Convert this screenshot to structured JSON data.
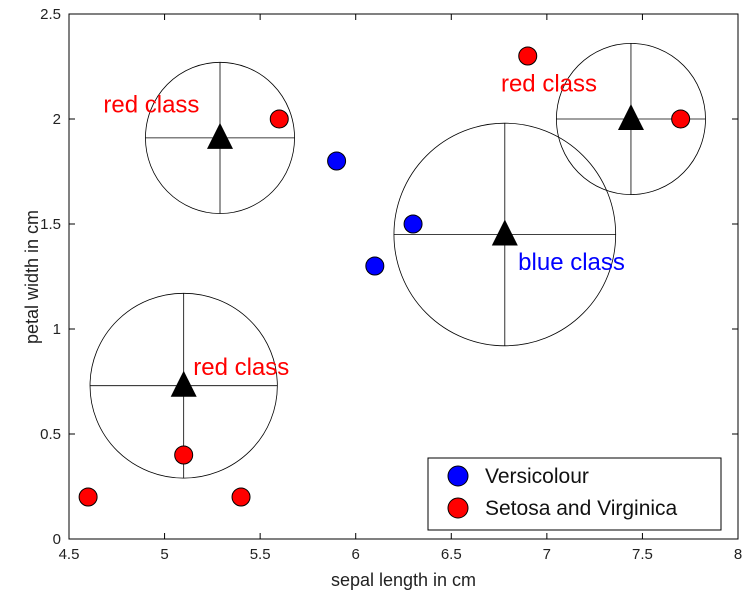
{
  "chart_data": {
    "type": "scatter",
    "title": "",
    "xlabel": "sepal length in cm",
    "ylabel": "petal width in cm",
    "xlim": [
      4.5,
      8
    ],
    "ylim": [
      0,
      2.5
    ],
    "xticks": [
      4.5,
      5,
      5.5,
      6,
      6.5,
      7,
      7.5,
      8
    ],
    "xtick_labels": [
      "4.5",
      "5",
      "5.5",
      "6",
      "6.5",
      "7",
      "7.5",
      "8"
    ],
    "yticks": [
      0,
      0.5,
      1,
      1.5,
      2,
      2.5
    ],
    "ytick_labels": [
      "0",
      "0.5",
      "1",
      "1.5",
      "2",
      "2.5"
    ],
    "grid": false,
    "legend_position": "bottom-right",
    "series": [
      {
        "name": "Versicolour",
        "color": "#0000ff",
        "points": [
          {
            "x": 5.9,
            "y": 1.8
          },
          {
            "x": 6.3,
            "y": 1.5
          },
          {
            "x": 6.1,
            "y": 1.3
          }
        ]
      },
      {
        "name": "Setosa and Virginica",
        "color": "#ff0000",
        "points": [
          {
            "x": 6.9,
            "y": 2.3
          },
          {
            "x": 5.6,
            "y": 2.0
          },
          {
            "x": 7.7,
            "y": 2.0
          },
          {
            "x": 5.1,
            "y": 0.4
          },
          {
            "x": 4.6,
            "y": 0.2
          },
          {
            "x": 5.4,
            "y": 0.2
          }
        ]
      }
    ],
    "centroids": [
      {
        "x": 5.29,
        "y": 1.91,
        "rx": 0.39,
        "ry": 0.36,
        "label": "red class",
        "label_color": "#ff0000",
        "label_x": 4.68,
        "label_y": 2.03
      },
      {
        "x": 6.78,
        "y": 1.45,
        "rx": 0.58,
        "ry": 0.53,
        "label": "blue class",
        "label_color": "#0000ff",
        "label_x": 6.85,
        "label_y": 1.28
      },
      {
        "x": 7.44,
        "y": 2.0,
        "rx": 0.39,
        "ry": 0.36,
        "label": "red class",
        "label_color": "#ff0000",
        "label_x": 6.76,
        "label_y": 2.13
      },
      {
        "x": 5.1,
        "y": 0.73,
        "rx": 0.49,
        "ry": 0.44,
        "label": "red class",
        "label_color": "#ff0000",
        "label_x": 5.15,
        "label_y": 0.78
      }
    ]
  }
}
